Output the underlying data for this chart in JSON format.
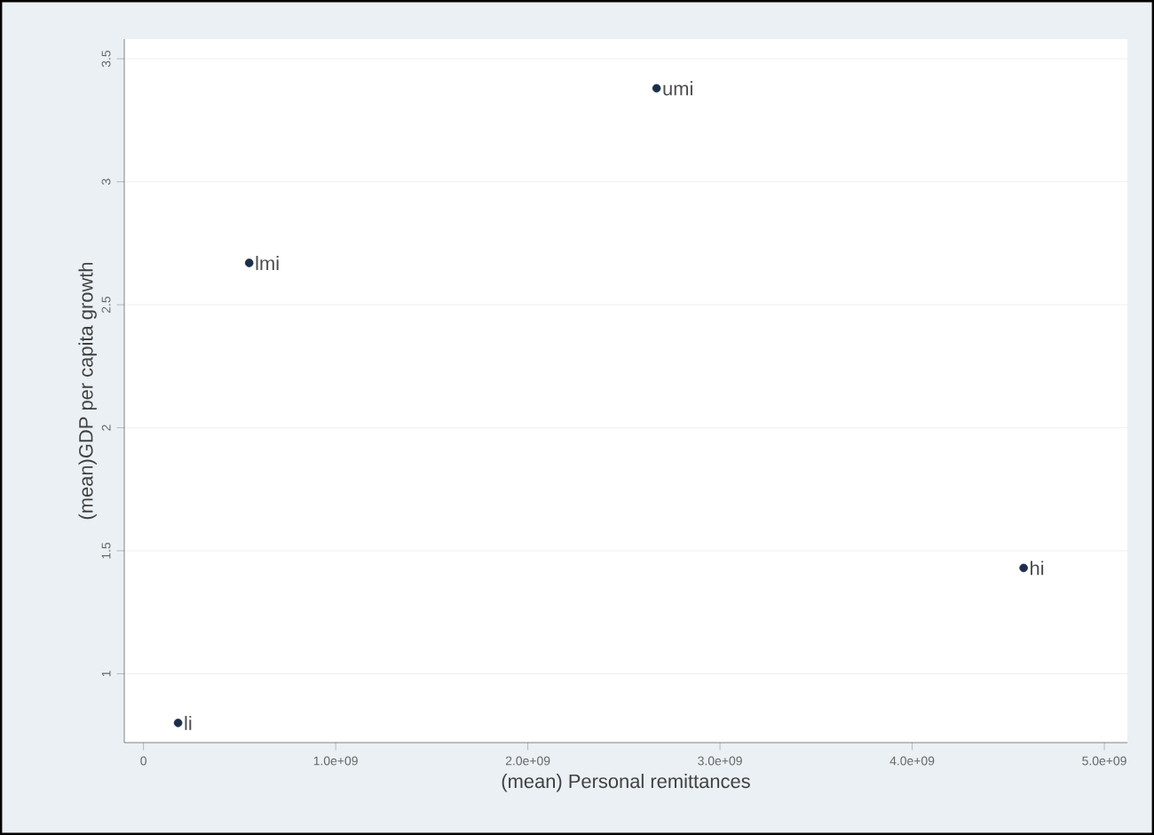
{
  "chart_data": {
    "type": "scatter",
    "xlabel": "(mean) Personal remittances",
    "ylabel": "(mean)GDP per capita growth",
    "x": [
      180000000,
      550000000,
      2670000000,
      4580000000
    ],
    "values": [
      0.8,
      2.67,
      3.38,
      1.43
    ],
    "color": "#1a2e4a",
    "grid": "y",
    "xlim": [
      -100000000,
      5120000000
    ],
    "ylim": [
      0.72,
      3.58
    ],
    "xticks": [
      0,
      {
        "value": 1000000000,
        "label": "1.0e+09"
      },
      {
        "value": 2000000000,
        "label": "2.0e+09"
      },
      {
        "value": 3000000000,
        "label": "3.0e+09"
      },
      {
        "value": 4000000000,
        "label": "4.0e+09"
      },
      {
        "value": 5000000000,
        "label": "5.0e+09"
      }
    ],
    "yticks": [
      1,
      1.5,
      2,
      2.5,
      3,
      3.5
    ],
    "annotations": [
      {
        "text": "li",
        "x": 180000000,
        "y": 0.8
      },
      {
        "text": "lmi",
        "x": 550000000,
        "y": 2.67
      },
      {
        "text": "umi",
        "x": 2670000000,
        "y": 3.38
      },
      {
        "text": "hi",
        "x": 4580000000,
        "y": 1.43
      }
    ]
  }
}
